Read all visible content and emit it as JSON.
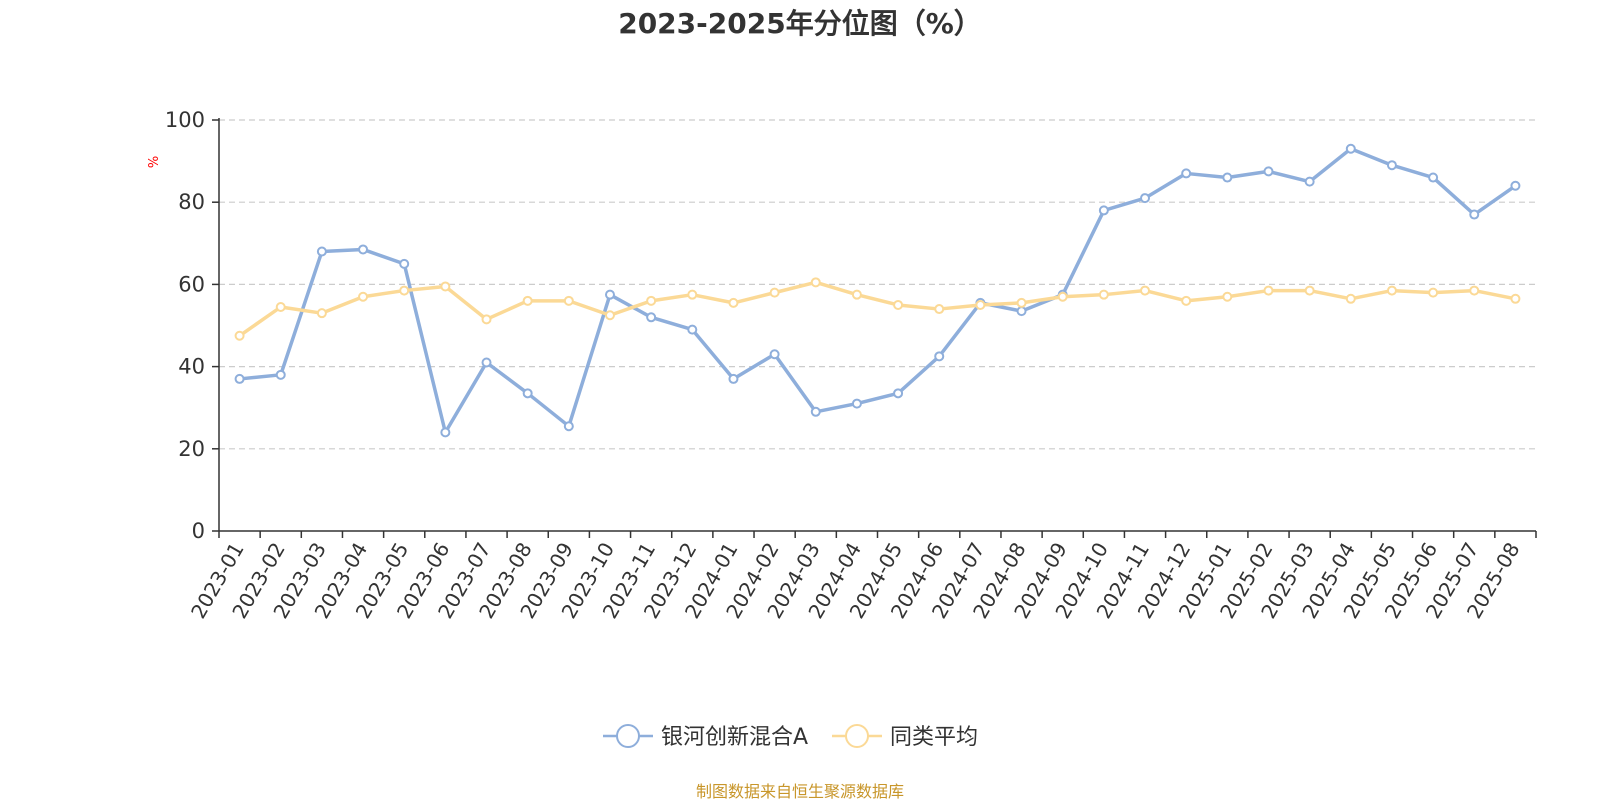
{
  "chart_data": {
    "type": "line",
    "title": "2023-2025年分位图（%）",
    "ylabel": "%",
    "xlabel": "",
    "ylim": [
      0,
      100
    ],
    "yticks": [
      0,
      20,
      40,
      60,
      80,
      100
    ],
    "grid": true,
    "legend_position": "bottom",
    "categories": [
      "2023-01",
      "2023-02",
      "2023-03",
      "2023-04",
      "2023-05",
      "2023-06",
      "2023-07",
      "2023-08",
      "2023-09",
      "2023-10",
      "2023-11",
      "2023-12",
      "2024-01",
      "2024-02",
      "2024-03",
      "2024-04",
      "2024-05",
      "2024-06",
      "2024-07",
      "2024-08",
      "2024-09",
      "2024-10",
      "2024-11",
      "2024-12",
      "2025-01",
      "2025-02",
      "2025-03",
      "2025-04",
      "2025-05",
      "2025-06",
      "2025-07",
      "2025-08"
    ],
    "series": [
      {
        "name": "银河创新混合A",
        "color": "#8eaedb",
        "values": [
          37,
          38,
          68,
          68.5,
          65,
          24,
          41,
          33.5,
          25.5,
          57.5,
          52,
          49,
          37,
          43,
          29,
          31,
          33.5,
          42.5,
          55.5,
          53.5,
          57.5,
          78,
          81,
          87,
          86,
          87.5,
          85,
          93,
          89,
          86,
          77,
          84
        ]
      },
      {
        "name": "同类平均",
        "color": "#fbd996",
        "values": [
          47.5,
          54.5,
          53,
          57,
          58.5,
          59.5,
          51.5,
          56,
          56,
          52.5,
          56,
          57.5,
          55.5,
          58,
          60.5,
          57.5,
          55,
          54,
          55,
          55.5,
          57,
          57.5,
          58.5,
          56,
          57,
          58.5,
          58.5,
          56.5,
          58.5,
          58,
          58.5,
          56.5
        ]
      }
    ],
    "source_note": "制图数据来自恒生聚源数据库"
  }
}
